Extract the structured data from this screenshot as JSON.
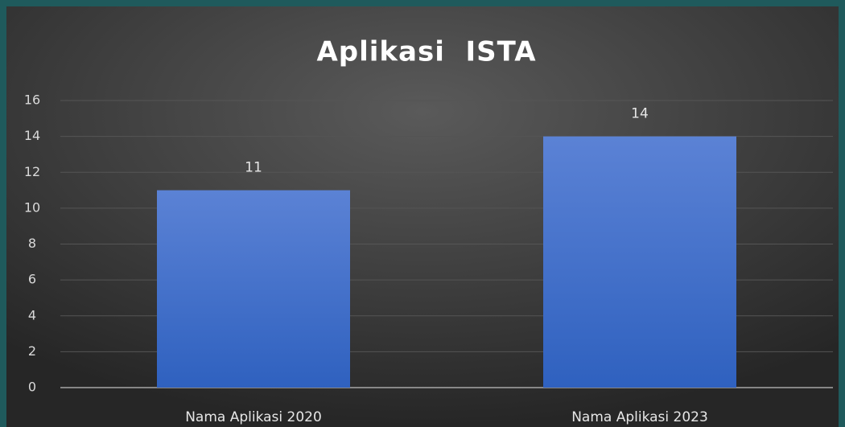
{
  "chart_data": {
    "type": "bar",
    "title": "Aplikasi  ISTA",
    "categories": [
      "Nama Aplikasi 2020",
      "Nama Aplikasi 2023"
    ],
    "values": [
      11,
      14
    ],
    "color": "#4472c4",
    "ylim": [
      0,
      16
    ],
    "yticks": [
      0,
      2,
      4,
      6,
      8,
      10,
      12,
      14,
      16
    ],
    "grid": true
  }
}
